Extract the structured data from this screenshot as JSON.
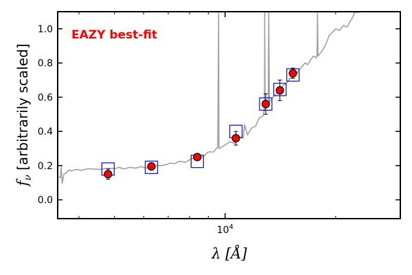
{
  "chart_data": {
    "type": "scatter",
    "annotation": "EAZY best-fit",
    "xlabel": "λ [Å]",
    "ylabel": "f_ν [arbitrarily scaled]",
    "x_scale": "log",
    "xlim": [
      3500,
      30000
    ],
    "ylim": [
      -0.11,
      1.1
    ],
    "x_ticks": [
      {
        "value": 10000,
        "label": "10",
        "exponent": "4"
      }
    ],
    "y_ticks": [
      0.0,
      0.2,
      0.4,
      0.6,
      0.8,
      1.0
    ],
    "y_tick_labels": [
      "0.0",
      "0.2",
      "0.4",
      "0.6",
      "0.8",
      "1.0"
    ],
    "colors": {
      "template": "#a0a0a0",
      "model_box": "#1a1acc",
      "observed": "#ff0000",
      "annotation": "#ff0000"
    },
    "series": [
      {
        "role": "template",
        "x": [
          3500,
          3560,
          3580,
          3600,
          3640,
          3700,
          3760,
          3820,
          3880,
          3950,
          4050,
          4150,
          4250,
          4400,
          4550,
          4700,
          4850,
          5000,
          5150,
          5300,
          5500,
          5700,
          5900,
          6100,
          6300,
          6500,
          6600,
          6700,
          6900,
          7100,
          7300,
          7500,
          7800,
          8100,
          8400,
          8700,
          9000,
          9300,
          9550,
          9600,
          9620,
          9650,
          9800,
          10000,
          10300,
          10600,
          10900,
          11200,
          11300,
          11500,
          11800,
          12100,
          12400,
          12700,
          12800,
          12820,
          12850,
          12900,
          13100,
          13150,
          13200,
          13500,
          13800,
          14100,
          14400,
          14700,
          15000,
          15300,
          15600,
          15900,
          16200,
          16500,
          16800,
          17100,
          17400,
          17700,
          17800,
          17850,
          17900,
          18200,
          18500,
          18800,
          19200,
          19600,
          20000,
          20500,
          21000,
          21500,
          22000,
          22300,
          22500,
          22600,
          22800,
          23000,
          23200
        ],
        "y": [
          0.135,
          0.13,
          0.19,
          0.095,
          0.15,
          0.16,
          0.175,
          0.168,
          0.175,
          0.178,
          0.172,
          0.178,
          0.182,
          0.18,
          0.178,
          0.182,
          0.184,
          0.182,
          0.19,
          0.18,
          0.19,
          0.185,
          0.194,
          0.186,
          0.192,
          0.2,
          0.2,
          0.2,
          0.205,
          0.215,
          0.212,
          0.225,
          0.22,
          0.24,
          0.245,
          0.25,
          0.28,
          0.28,
          0.31,
          1.12,
          0.3,
          0.3,
          0.31,
          0.32,
          0.34,
          0.33,
          0.37,
          0.36,
          0.44,
          0.38,
          0.42,
          0.43,
          0.48,
          0.49,
          0.54,
          1.12,
          0.52,
          0.55,
          0.55,
          1.12,
          0.57,
          0.6,
          0.62,
          0.64,
          0.67,
          0.68,
          0.71,
          0.72,
          0.73,
          0.76,
          0.78,
          0.8,
          0.79,
          0.82,
          0.84,
          0.83,
          0.85,
          1.12,
          0.84,
          0.86,
          0.88,
          0.91,
          0.96,
          0.98,
          1.0,
          0.99,
          1.02,
          1.01,
          1.05,
          1.07,
          1.1,
          1.1,
          1.11,
          1.12,
          1.12
        ]
      },
      {
        "role": "model",
        "x": [
          4800,
          6300,
          8400,
          10700,
          12900,
          14100,
          15300
        ],
        "y": [
          0.18,
          0.19,
          0.225,
          0.4,
          0.56,
          0.645,
          0.73
        ]
      },
      {
        "role": "observed",
        "x": [
          4800,
          6300,
          8400,
          10700,
          12900,
          14100,
          15300
        ],
        "y": [
          0.15,
          0.195,
          0.25,
          0.36,
          0.56,
          0.64,
          0.74
        ],
        "err": [
          0.03,
          0.01,
          0.02,
          0.04,
          0.06,
          0.06,
          0.03
        ]
      }
    ]
  }
}
